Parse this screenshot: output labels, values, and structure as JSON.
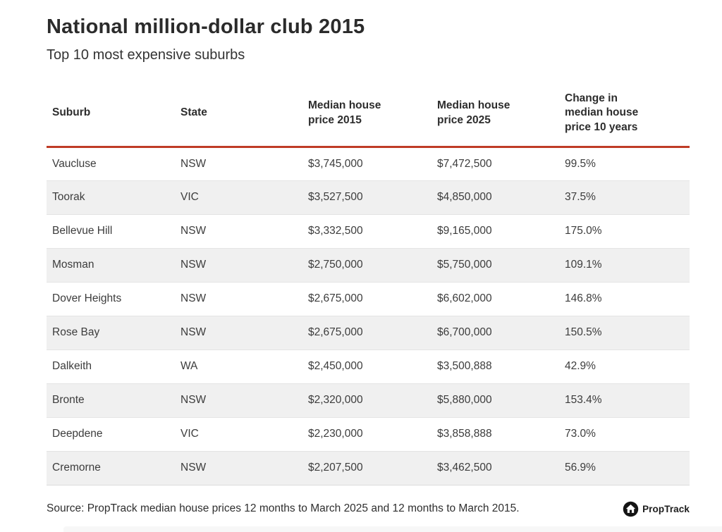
{
  "chart_data": {
    "type": "table",
    "title": "National million-dollar club 2015",
    "subtitle": "Top 10 most expensive suburbs",
    "columns": [
      "Suburb",
      "State",
      "Median house price 2015",
      "Median house price 2025",
      "Change in median house price 10 years"
    ],
    "rows": [
      [
        "Vaucluse",
        "NSW",
        "$3,745,000",
        "$7,472,500",
        "99.5%"
      ],
      [
        "Toorak",
        "VIC",
        "$3,527,500",
        "$4,850,000",
        "37.5%"
      ],
      [
        "Bellevue Hill",
        "NSW",
        "$3,332,500",
        "$9,165,000",
        "175.0%"
      ],
      [
        "Mosman",
        "NSW",
        "$2,750,000",
        "$5,750,000",
        "109.1%"
      ],
      [
        "Dover Heights",
        "NSW",
        "$2,675,000",
        "$6,602,000",
        "146.8%"
      ],
      [
        "Rose Bay",
        "NSW",
        "$2,675,000",
        "$6,700,000",
        "150.5%"
      ],
      [
        "Dalkeith",
        "WA",
        "$2,450,000",
        "$3,500,888",
        "42.9%"
      ],
      [
        "Bronte",
        "NSW",
        "$2,320,000",
        "$5,880,000",
        "153.4%"
      ],
      [
        "Deepdene",
        "VIC",
        "$2,230,000",
        "$3,858,888",
        "73.0%"
      ],
      [
        "Cremorne",
        "NSW",
        "$2,207,500",
        "$3,462,500",
        "56.9%"
      ]
    ],
    "source": "Source: PropTrack median house prices 12 months to March 2025 and 12 months to March 2015.",
    "brand": "PropTrack",
    "layout": {
      "grid": "off",
      "alternating_rows": true
    }
  },
  "style": {
    "accent_red": "#bf3c26",
    "row_alt_bg": "#f0f0f0",
    "title_color": "#2b2b2b",
    "body_text_color": "#3c3c3c",
    "logo_circle_color": "#141414"
  }
}
